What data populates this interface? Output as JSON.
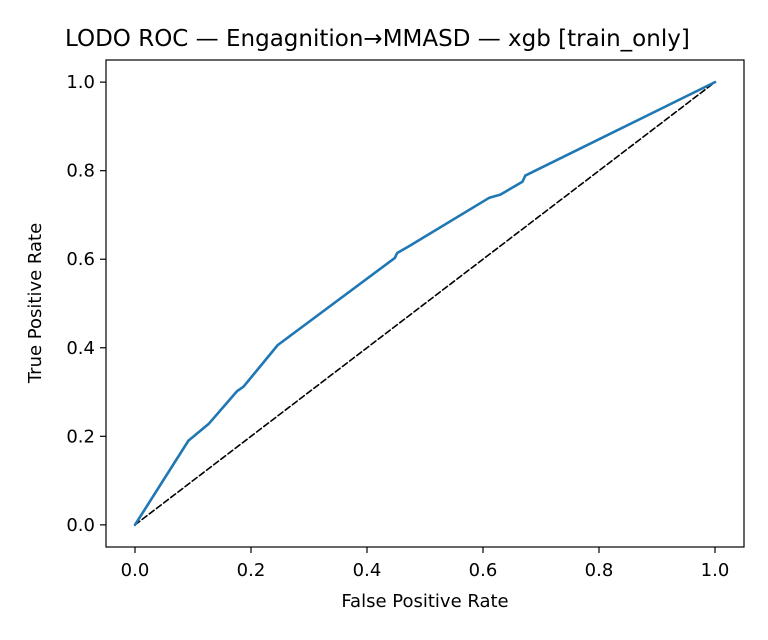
{
  "chart_data": {
    "type": "line",
    "title": "LODO ROC — Engagnition→MMASD — xgb [train_only]",
    "xlabel": "False Positive Rate",
    "ylabel": "True Positive Rate",
    "xlim": [
      -0.05,
      1.05
    ],
    "ylim": [
      -0.05,
      1.05
    ],
    "xticks": [
      "0.0",
      "0.2",
      "0.4",
      "0.6",
      "0.8",
      "1.0"
    ],
    "yticks": [
      "0.0",
      "0.2",
      "0.4",
      "0.6",
      "0.8",
      "1.0"
    ],
    "grid": false,
    "legend": "none",
    "series": [
      {
        "color": "#1f77b4",
        "style": "solid",
        "x": [
          0.0,
          0.092,
          0.127,
          0.176,
          0.187,
          0.246,
          0.448,
          0.452,
          0.472,
          0.611,
          0.63,
          0.668,
          0.673,
          1.0
        ],
        "y": [
          0.0,
          0.19,
          0.228,
          0.302,
          0.312,
          0.406,
          0.603,
          0.614,
          0.629,
          0.739,
          0.746,
          0.775,
          0.789,
          1.0
        ]
      },
      {
        "color": "#000000",
        "style": "dashed",
        "x": [
          0.0,
          1.0
        ],
        "y": [
          0.0,
          1.0
        ]
      }
    ]
  }
}
